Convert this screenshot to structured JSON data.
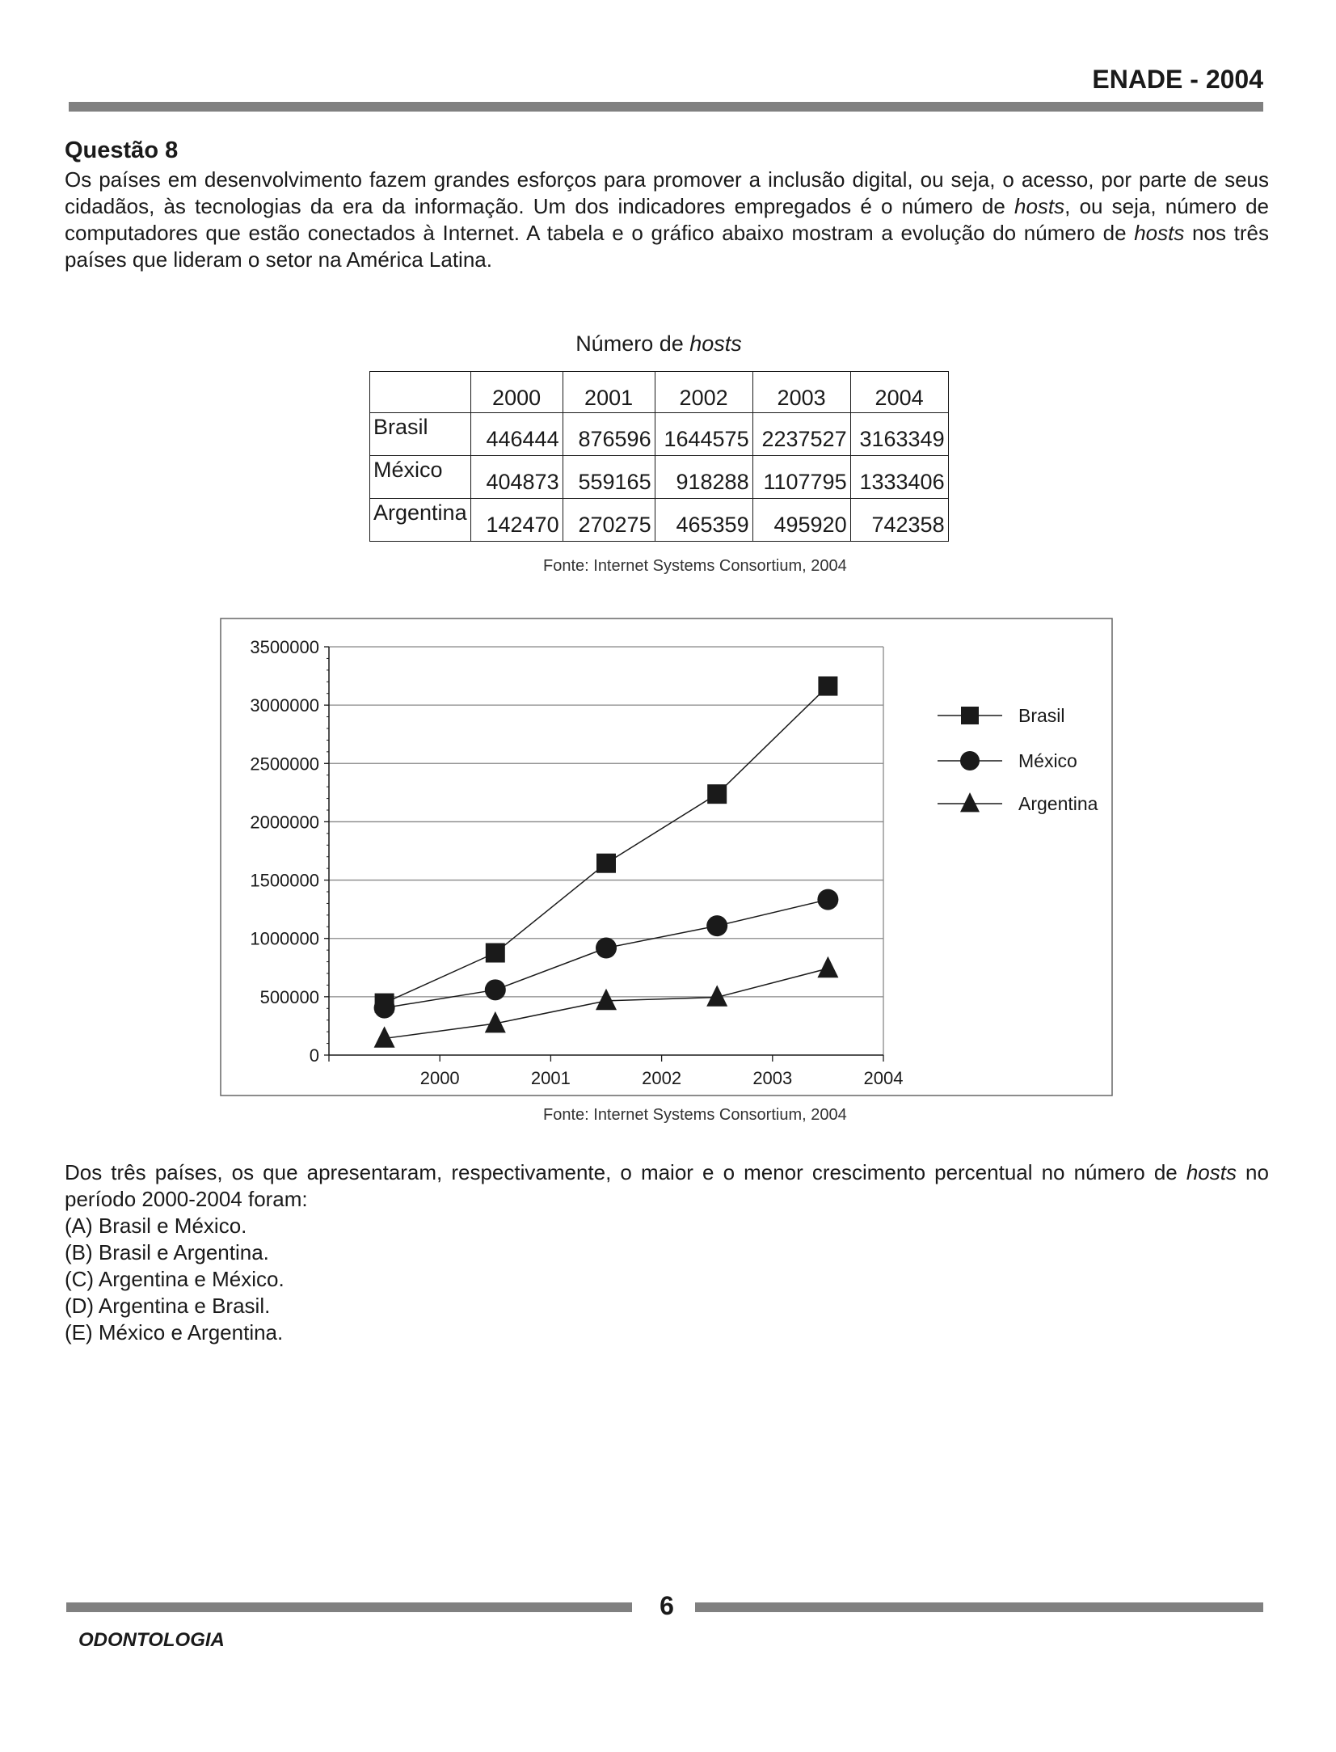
{
  "header": {
    "title": "ENADE - 2004"
  },
  "question": {
    "title": "Questão 8",
    "intro_parts": [
      "Os países em desenvolvimento fazem grandes esforços para promover a inclusão digital, ou seja, o acesso, por parte de seus cidadãos, às tecnologias da era da informação. Um dos indicadores empregados é o número de ",
      "hosts",
      ", ou seja, número de computadores que estão conectados à Internet. A tabela e o gráfico abaixo mostram a evolução do número de ",
      "hosts",
      " nos três países que lideram o setor na América Latina."
    ],
    "stem_parts": [
      "Dos três países, os que apresentaram, respectivamente, o maior e o menor crescimento percentual no número de ",
      "hosts",
      " no período 2000-2004 foram:"
    ],
    "options": [
      "(A) Brasil e México.",
      "(B) Brasil e Argentina.",
      "(C) Argentina e México.",
      "(D) Argentina e Brasil.",
      "(E) México e Argentina."
    ]
  },
  "table": {
    "caption_prefix": "Número de ",
    "caption_italic": "hosts",
    "years": [
      "2000",
      "2001",
      "2002",
      "2003",
      "2004"
    ],
    "rows": [
      {
        "country": "Brasil",
        "values": [
          "446444",
          "876596",
          "1644575",
          "2237527",
          "3163349"
        ]
      },
      {
        "country": "México",
        "values": [
          "404873",
          "559165",
          "918288",
          "1107795",
          "1333406"
        ]
      },
      {
        "country": "Argentina",
        "values": [
          "142470",
          "270275",
          "465359",
          "495920",
          "742358"
        ]
      }
    ],
    "source": "Fonte: Internet Systems Consortium, 2004"
  },
  "chart_data": {
    "type": "line",
    "ylim": [
      0,
      3500000
    ],
    "y_ticks": [
      "0",
      "500000",
      "1000000",
      "1500000",
      "2000000",
      "2500000",
      "3000000",
      "3500000"
    ],
    "x_tick_labels": [
      "2000",
      "2001",
      "2002",
      "2003",
      "2004"
    ],
    "categories": [
      "2000",
      "2001",
      "2002",
      "2003",
      "2004"
    ],
    "grid": true,
    "legend_position": "right",
    "series": [
      {
        "name": "Brasil",
        "marker": "square",
        "values": [
          446444,
          876596,
          1644575,
          2237527,
          3163349
        ]
      },
      {
        "name": "México",
        "marker": "circle",
        "values": [
          404873,
          559165,
          918288,
          1107795,
          1333406
        ]
      },
      {
        "name": "Argentina",
        "marker": "triangle",
        "values": [
          142470,
          270275,
          465359,
          495920,
          742358
        ]
      }
    ],
    "line_color": "#1a1a1a",
    "grid_color": "#888888",
    "source": "Fonte: Internet Systems Consortium, 2004"
  },
  "footer": {
    "page_number": "6",
    "course": "ODONTOLOGIA"
  }
}
